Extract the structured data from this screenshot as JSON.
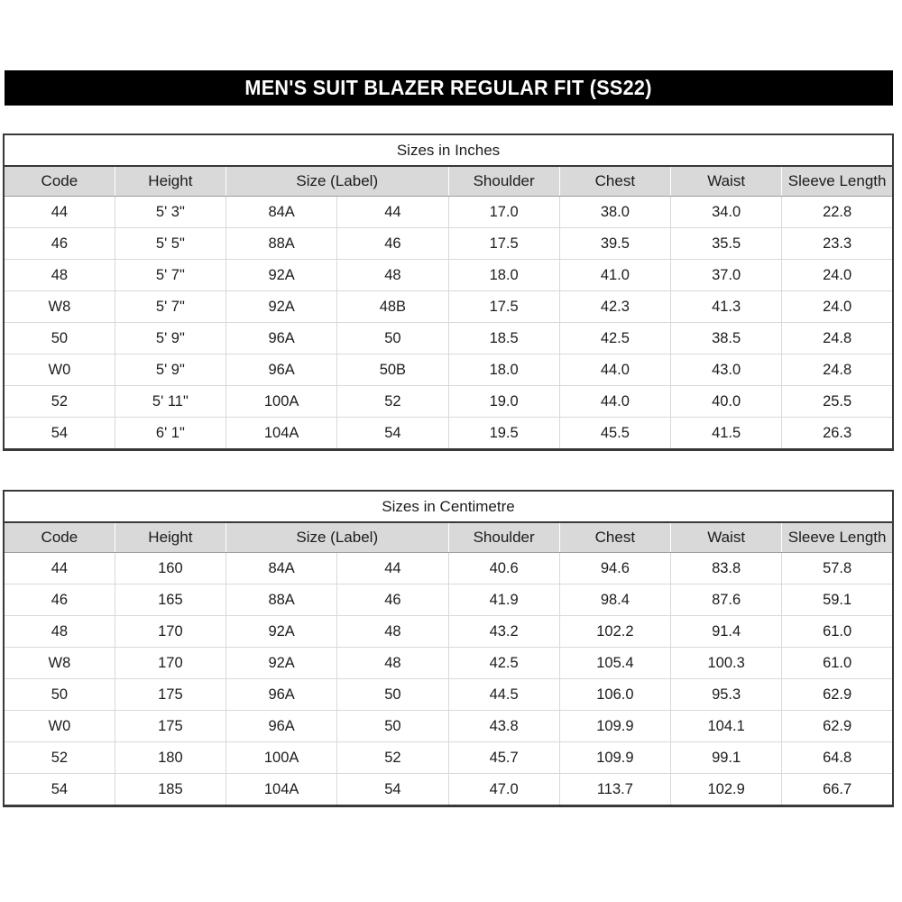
{
  "banner": {
    "title": "MEN'S SUIT BLAZER REGULAR FIT (SS22)"
  },
  "tables": [
    {
      "title": "Sizes in Inches",
      "columns": [
        {
          "label": "Code",
          "span": 1
        },
        {
          "label": "Height",
          "span": 1
        },
        {
          "label": "Size (Label)",
          "span": 2
        },
        {
          "label": "Shoulder",
          "span": 1
        },
        {
          "label": "Chest",
          "span": 1
        },
        {
          "label": "Waist",
          "span": 1
        },
        {
          "label": "Sleeve Length",
          "span": 1
        }
      ],
      "rows": [
        [
          "44",
          "5' 3\"",
          "84A",
          "44",
          "17.0",
          "38.0",
          "34.0",
          "22.8"
        ],
        [
          "46",
          "5' 5\"",
          "88A",
          "46",
          "17.5",
          "39.5",
          "35.5",
          "23.3"
        ],
        [
          "48",
          "5' 7\"",
          "92A",
          "48",
          "18.0",
          "41.0",
          "37.0",
          "24.0"
        ],
        [
          "W8",
          "5' 7\"",
          "92A",
          "48B",
          "17.5",
          "42.3",
          "41.3",
          "24.0"
        ],
        [
          "50",
          "5' 9\"",
          "96A",
          "50",
          "18.5",
          "42.5",
          "38.5",
          "24.8"
        ],
        [
          "W0",
          "5' 9\"",
          "96A",
          "50B",
          "18.0",
          "44.0",
          "43.0",
          "24.8"
        ],
        [
          "52",
          "5' 11\"",
          "100A",
          "52",
          "19.0",
          "44.0",
          "40.0",
          "25.5"
        ],
        [
          "54",
          "6' 1\"",
          "104A",
          "54",
          "19.5",
          "45.5",
          "41.5",
          "26.3"
        ]
      ]
    },
    {
      "title": "Sizes in Centimetre",
      "columns": [
        {
          "label": "Code",
          "span": 1
        },
        {
          "label": "Height",
          "span": 1
        },
        {
          "label": "Size (Label)",
          "span": 2
        },
        {
          "label": "Shoulder",
          "span": 1
        },
        {
          "label": "Chest",
          "span": 1
        },
        {
          "label": "Waist",
          "span": 1
        },
        {
          "label": "Sleeve Length",
          "span": 1
        }
      ],
      "rows": [
        [
          "44",
          "160",
          "84A",
          "44",
          "40.6",
          "94.6",
          "83.8",
          "57.8"
        ],
        [
          "46",
          "165",
          "88A",
          "46",
          "41.9",
          "98.4",
          "87.6",
          "59.1"
        ],
        [
          "48",
          "170",
          "92A",
          "48",
          "43.2",
          "102.2",
          "91.4",
          "61.0"
        ],
        [
          "W8",
          "170",
          "92A",
          "48",
          "42.5",
          "105.4",
          "100.3",
          "61.0"
        ],
        [
          "50",
          "175",
          "96A",
          "50",
          "44.5",
          "106.0",
          "95.3",
          "62.9"
        ],
        [
          "W0",
          "175",
          "96A",
          "50",
          "43.8",
          "109.9",
          "104.1",
          "62.9"
        ],
        [
          "52",
          "180",
          "100A",
          "52",
          "45.7",
          "109.9",
          "99.1",
          "64.8"
        ],
        [
          "54",
          "185",
          "104A",
          "54",
          "47.0",
          "113.7",
          "102.9",
          "66.7"
        ]
      ]
    }
  ],
  "colors": {
    "banner_bg": "#000000",
    "banner_text": "#ffffff",
    "header_row_bg": "#d9d9d9",
    "outer_border": "#383838",
    "grid_line": "#d9d9d9",
    "header_underline": "#9d9d9d",
    "text": "#1c1c1c",
    "page_bg": "#ffffff"
  }
}
